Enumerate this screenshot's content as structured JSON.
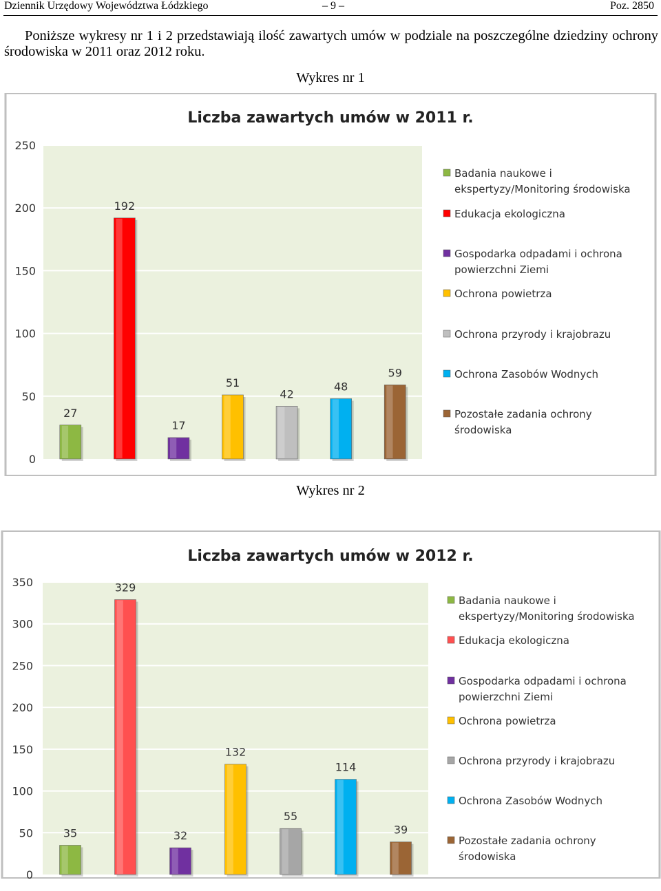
{
  "header": {
    "journal": "Dziennik Urzędowy Województwa Łódzkiego",
    "page": "– 9 –",
    "position": "Poz. 2850"
  },
  "intro": "Poniższe wykresy nr 1 i 2 przedstawiają ilość zawartych umów w podziale na poszczególne dziedziny ochrony środowiska w 2011 oraz 2012 roku.",
  "captions": [
    "Wykres nr 1",
    "Wykres nr 2"
  ],
  "colors": {
    "plot_bg": "#ebf1de",
    "frame": "#bfbfbf",
    "grid": "#ffffff"
  },
  "chart_data": [
    {
      "type": "bar",
      "title": "Liczba zawartych umów w 2011 r.",
      "categories": [
        [
          "Badania naukowe i",
          "ekspertyzy/Monitoring środowiska"
        ],
        [
          "Edukacja ekologiczna"
        ],
        [
          "Gospodarka odpadami i ochrona",
          "powierzchni Ziemi"
        ],
        [
          "Ochrona powietrza"
        ],
        [
          "Ochrona przyrody i krajobrazu"
        ],
        [
          "Ochrona Zasobów Wodnych"
        ],
        [
          "Pozostałe zadania ochrony",
          "środowiska"
        ]
      ],
      "values": [
        27,
        192,
        17,
        51,
        42,
        48,
        59
      ],
      "value_labels": [
        "27",
        "192",
        "17",
        "51",
        "42",
        "48",
        "59"
      ],
      "bar_colors": [
        "#8db843",
        "#ff0000",
        "#7030a0",
        "#ffc000",
        "#bfbfbf",
        "#00b0f0",
        "#9b6535"
      ],
      "ylim": [
        0,
        250
      ],
      "yticks": [
        0,
        50,
        100,
        150,
        200,
        250
      ],
      "ytick_labels": [
        "0",
        "50",
        "100",
        "150",
        "200",
        "250"
      ],
      "xlabel": "",
      "ylabel": "",
      "legend": "right",
      "grid": true
    },
    {
      "type": "bar",
      "title": "Liczba zawartych umów w 2012 r.",
      "categories": [
        [
          "Badania naukowe i",
          "ekspertyzy/Monitoring środowiska"
        ],
        [
          "Edukacja ekologiczna"
        ],
        [
          "Gospodarka odpadami i ochrona",
          "powierzchni Ziemi"
        ],
        [
          "Ochrona powietrza"
        ],
        [
          "Ochrona przyrody i krajobrazu"
        ],
        [
          "Ochrona Zasobów Wodnych"
        ],
        [
          "Pozostałe zadania ochrony",
          "środowiska"
        ]
      ],
      "values": [
        35,
        329,
        32,
        132,
        55,
        114,
        39
      ],
      "value_labels": [
        "35",
        "329",
        "32",
        "132",
        "55",
        "114",
        "39"
      ],
      "bar_colors": [
        "#8db843",
        "#ff5050",
        "#7030a0",
        "#ffc000",
        "#a6a6a6",
        "#00b0f0",
        "#9b6535"
      ],
      "ylim": [
        0,
        350
      ],
      "yticks": [
        0,
        50,
        100,
        150,
        200,
        250,
        300,
        350
      ],
      "ytick_labels": [
        "0",
        "50",
        "100",
        "150",
        "200",
        "250",
        "300",
        "350"
      ],
      "xlabel": "",
      "ylabel": "",
      "legend": "right",
      "grid": true
    }
  ]
}
